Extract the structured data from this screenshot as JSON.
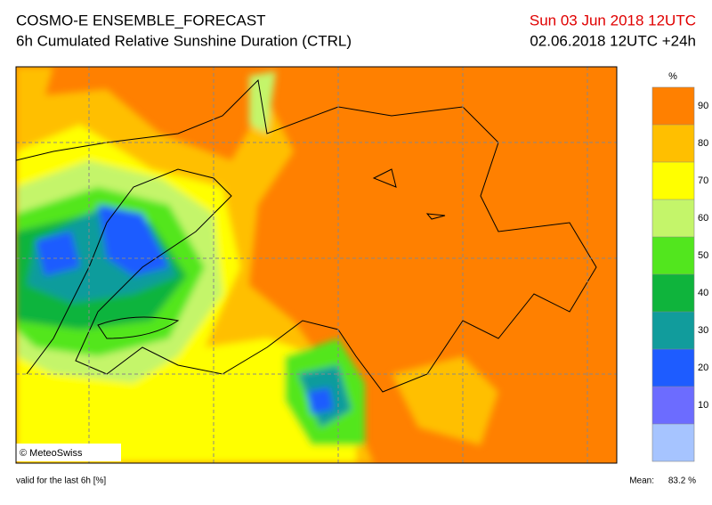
{
  "header": {
    "title": "COSMO-E ENSEMBLE_FORECAST",
    "subtitle": "6h Cumulated Relative Sunshine Duration (CTRL)",
    "valid_date": "Sun 03 Jun 2018 12UTC",
    "run": "02.06.2018 12UTC +24h"
  },
  "colorbar": {
    "unit": "%",
    "colors": [
      "#a6c4ff",
      "#6c6cff",
      "#1e5cff",
      "#119c9c",
      "#0fb43c",
      "#52e61e",
      "#c4f56a",
      "#ffff00",
      "#ffbf00",
      "#ff8000"
    ],
    "ticks": [
      10,
      20,
      30,
      40,
      50,
      60,
      70,
      80,
      90
    ]
  },
  "map": {
    "credit": "© MeteoSwiss"
  },
  "footer": {
    "validity": "valid for the last 6h [%]",
    "mean_label": "Mean:",
    "mean_value": "83.2 %"
  }
}
